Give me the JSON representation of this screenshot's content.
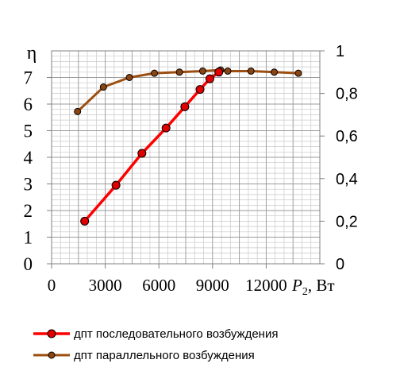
{
  "chart_data": {
    "type": "line",
    "title": "",
    "x_axis": {
      "label_main": "P",
      "label_sub": "2",
      "label_unit": ", Вт",
      "range": [
        0,
        15000
      ],
      "ticks": [
        0,
        3000,
        6000,
        9000,
        12000
      ],
      "tick_labels": [
        "0",
        "3000",
        "6000",
        "9000",
        "12000"
      ]
    },
    "y_left": {
      "label": "η",
      "range": [
        0,
        8
      ],
      "ticks": [
        0,
        1,
        2,
        3,
        4,
        5,
        6,
        7
      ],
      "tick_labels": [
        "0",
        "1",
        "2",
        "3",
        "4",
        "5",
        "6",
        "7"
      ]
    },
    "y_right": {
      "range": [
        0,
        1
      ],
      "ticks": [
        0,
        0.2,
        0.4,
        0.6,
        0.8,
        1
      ],
      "tick_labels": [
        "0",
        "0,2",
        "0,4",
        "0,6",
        "0,8",
        "1"
      ]
    },
    "grid": true,
    "legend_position": "bottom",
    "series": [
      {
        "name": "дпт последовательного возбуждения",
        "axis": "left",
        "color": "#ff0000",
        "marker_color": "#e00000",
        "x": [
          1850,
          3600,
          5050,
          6400,
          7450,
          8300,
          8850,
          9350
        ],
        "y": [
          1.6,
          2.95,
          4.15,
          5.1,
          5.9,
          6.55,
          6.95,
          7.2
        ]
      },
      {
        "name": "дпт параллельного возбуждения",
        "axis": "right",
        "color": "#9c4f10",
        "marker_color": "#8b4513",
        "x": [
          1450,
          2900,
          4350,
          5750,
          7150,
          8450,
          9450,
          9850,
          11150,
          12450,
          13800
        ],
        "y": [
          0.715,
          0.83,
          0.875,
          0.895,
          0.9,
          0.905,
          0.91,
          0.905,
          0.905,
          0.9,
          0.895
        ]
      }
    ]
  }
}
